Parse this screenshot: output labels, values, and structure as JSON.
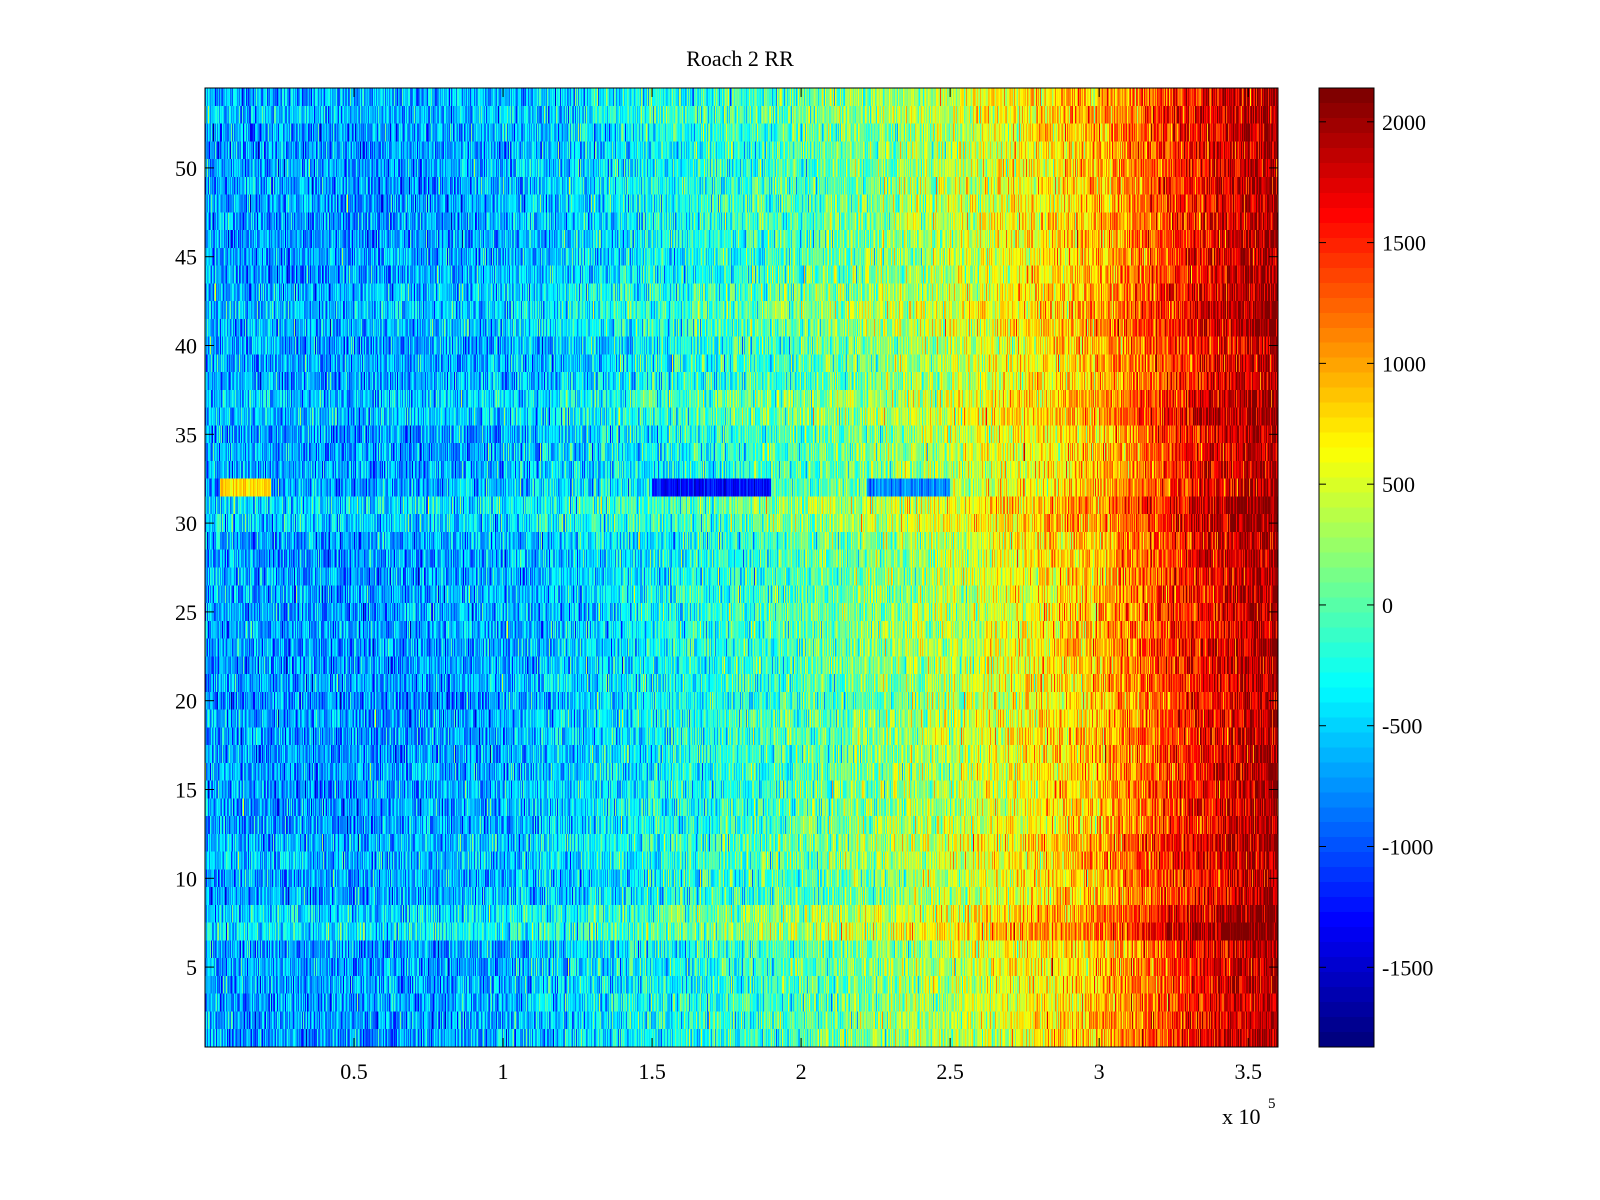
{
  "chart_data": {
    "type": "heatmap",
    "title": "Roach 2 RR",
    "xlabel": "",
    "ylabel": "",
    "x_multiplier_label": "x 10",
    "x_multiplier_exponent": "5",
    "xlim": [
      0,
      360000
    ],
    "ylim": [
      0.5,
      54.5
    ],
    "xticks": [
      {
        "value": 50000,
        "label": "0.5"
      },
      {
        "value": 100000,
        "label": "1"
      },
      {
        "value": 150000,
        "label": "1.5"
      },
      {
        "value": 200000,
        "label": "2"
      },
      {
        "value": 250000,
        "label": "2.5"
      },
      {
        "value": 300000,
        "label": "3"
      },
      {
        "value": 350000,
        "label": "3.5"
      }
    ],
    "yticks": [
      {
        "value": 5,
        "label": "5"
      },
      {
        "value": 10,
        "label": "10"
      },
      {
        "value": 15,
        "label": "15"
      },
      {
        "value": 20,
        "label": "20"
      },
      {
        "value": 25,
        "label": "25"
      },
      {
        "value": 30,
        "label": "30"
      },
      {
        "value": 35,
        "label": "35"
      },
      {
        "value": 40,
        "label": "40"
      },
      {
        "value": 45,
        "label": "45"
      },
      {
        "value": 50,
        "label": "50"
      }
    ],
    "colorbar": {
      "colormap": "jet",
      "clim": [
        -1830,
        2140
      ],
      "ticks": [
        {
          "value": -1500,
          "label": "-1500"
        },
        {
          "value": -1000,
          "label": "-1000"
        },
        {
          "value": -500,
          "label": "-500"
        },
        {
          "value": 0,
          "label": "0"
        },
        {
          "value": 500,
          "label": "500"
        },
        {
          "value": 1000,
          "label": "1000"
        },
        {
          "value": 1500,
          "label": "1500"
        },
        {
          "value": 2000,
          "label": "2000"
        }
      ]
    },
    "rows": 54,
    "trend_x": [
      0,
      50000,
      100000,
      150000,
      200000,
      250000,
      300000,
      330000,
      360000
    ],
    "trend_value": [
      -700,
      -750,
      -650,
      -350,
      -50,
      350,
      900,
      1550,
      2000
    ],
    "row_offsets": {
      "7": 350,
      "8": 250,
      "11": 100,
      "12": 120,
      "20": -80,
      "30": 200,
      "31": 250,
      "36": 150,
      "37": 150,
      "41": 120,
      "42": 150,
      "43": 100,
      "53": 100,
      "54": 50
    },
    "special_row": {
      "row": 32,
      "segments": [
        {
          "x": [
            5000,
            22000
          ],
          "value": 800
        },
        {
          "x": [
            150000,
            190000
          ],
          "value": -1300
        },
        {
          "x": [
            222000,
            250000
          ],
          "value": -800
        }
      ]
    },
    "grid": false
  }
}
